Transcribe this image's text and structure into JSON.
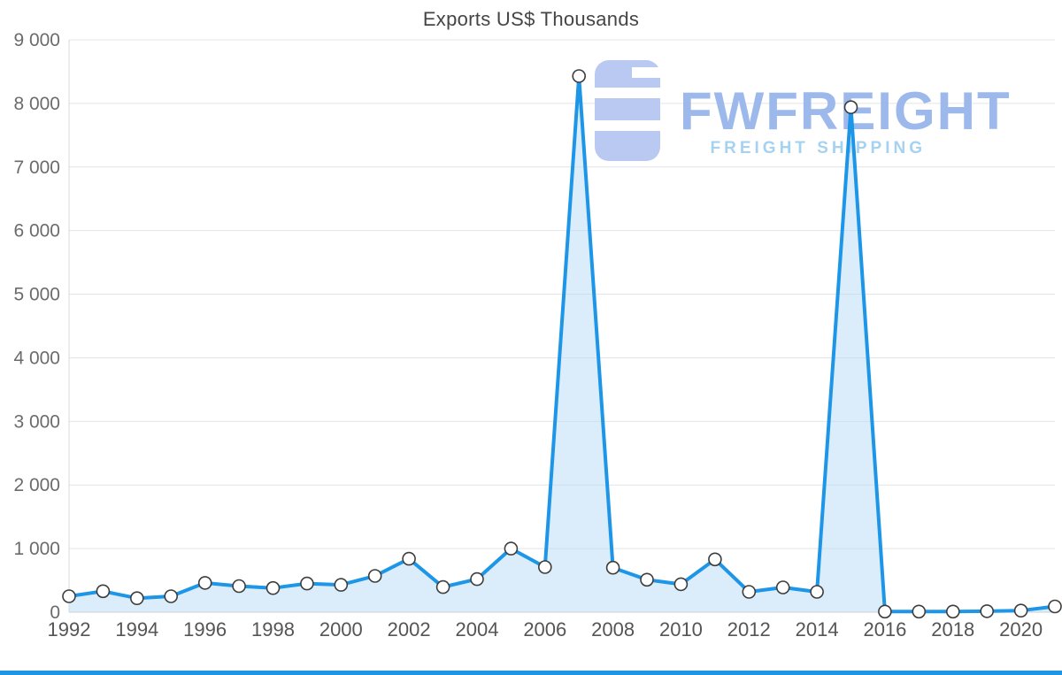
{
  "title": "Exports US$ Thousands",
  "watermark": {
    "brand": "FWFREIGHT",
    "tagline": "FREIGHT SHIPPING",
    "brand_color": "#9db9ec",
    "tagline_color": "#a6d2f2",
    "logo_color": "#b9c9f1"
  },
  "chart_data": {
    "type": "area",
    "title": "Exports US$ Thousands",
    "x": [
      1992,
      1993,
      1994,
      1995,
      1996,
      1997,
      1998,
      1999,
      2000,
      2001,
      2002,
      2003,
      2004,
      2005,
      2006,
      2007,
      2008,
      2009,
      2010,
      2011,
      2012,
      2013,
      2014,
      2015,
      2016,
      2017,
      2018,
      2019,
      2020,
      2021
    ],
    "values": [
      250,
      330,
      220,
      250,
      460,
      410,
      380,
      450,
      430,
      570,
      840,
      395,
      520,
      1000,
      710,
      8430,
      700,
      510,
      440,
      830,
      320,
      390,
      320,
      7940,
      10,
      10,
      10,
      15,
      25,
      90
    ],
    "ylim": [
      0,
      9000
    ],
    "y_ticks": [
      0,
      1000,
      2000,
      3000,
      4000,
      5000,
      6000,
      7000,
      8000,
      9000
    ],
    "y_tick_labels": [
      "0",
      "1 000",
      "2 000",
      "3 000",
      "4 000",
      "5 000",
      "6 000",
      "7 000",
      "8 000",
      "9 000"
    ],
    "x_ticks": [
      1992,
      1994,
      1996,
      1998,
      2000,
      2002,
      2004,
      2006,
      2008,
      2010,
      2012,
      2014,
      2016,
      2018,
      2020
    ],
    "x_tick_labels": [
      "1992",
      "1994",
      "1996",
      "1998",
      "2000",
      "2002",
      "2004",
      "2006",
      "2008",
      "2010",
      "2012",
      "2014",
      "2016",
      "2018",
      "2020"
    ],
    "grid": true,
    "legend": false,
    "line_color": "#1e96e8",
    "fill_color": "#b8dcf8",
    "fill_opacity": 0.5,
    "marker_fill": "#ffffff",
    "marker_stroke": "#3d3d3d",
    "grid_color": "#e4e4e4",
    "axis_color": "#d8d8d8",
    "y_label_color": "#6b6b6b",
    "x_label_color": "#555555"
  },
  "footer_bar_color": "#1e96e8"
}
